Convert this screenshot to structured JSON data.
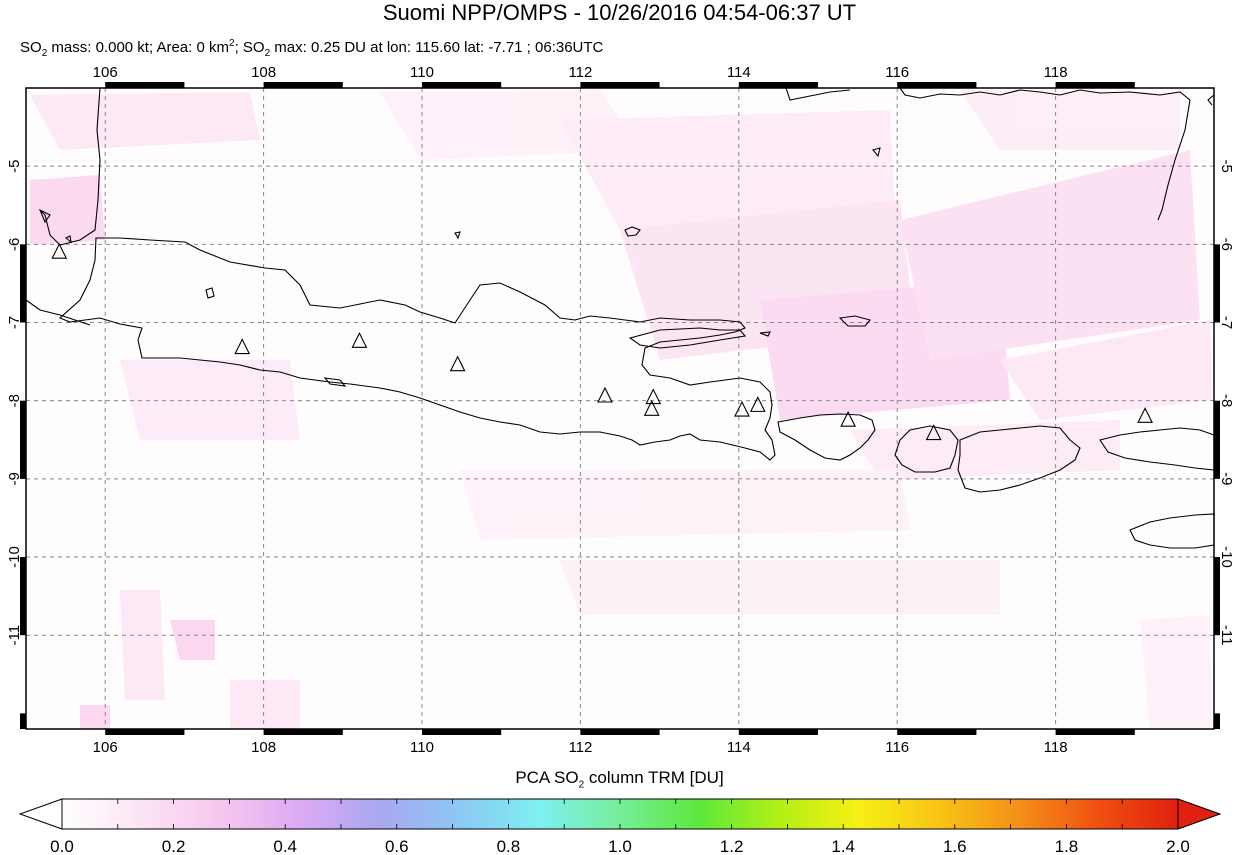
{
  "title": "Suomi NPP/OMPS - 10/26/2016 04:54-06:37 UT",
  "subtitle": {
    "so2_prefix": "SO",
    "so2_sub": "2",
    "mass_text": " mass: 0.000 kt; Area: 0 km",
    "area_sup": "2",
    "max_text": "; SO",
    "max_sub": "2",
    "max_rest": " max: 0.25 DU at lon: 115.60 lat: -7.71 ; 06:36UTC"
  },
  "map": {
    "lon_ticks": [
      "106",
      "108",
      "110",
      "112",
      "114",
      "116",
      "118"
    ],
    "lat_ticks": [
      "-5",
      "-6",
      "-7",
      "-8",
      "-9",
      "-10",
      "-11"
    ],
    "lon_range": [
      105,
      120
    ],
    "lat_range": [
      -12.2,
      -4.0
    ],
    "volcano_icon": "triangle-volcano-icon",
    "volcanoes": [
      {
        "lon": 105.42,
        "lat": -6.1
      },
      {
        "lon": 107.73,
        "lat": -7.32
      },
      {
        "lon": 109.21,
        "lat": -7.24
      },
      {
        "lon": 110.45,
        "lat": -7.54
      },
      {
        "lon": 112.31,
        "lat": -7.94
      },
      {
        "lon": 112.92,
        "lat": -7.96
      },
      {
        "lon": 112.9,
        "lat": -8.11
      },
      {
        "lon": 114.04,
        "lat": -8.12
      },
      {
        "lon": 114.24,
        "lat": -8.06
      },
      {
        "lon": 115.38,
        "lat": -8.25
      },
      {
        "lon": 116.46,
        "lat": -8.42
      },
      {
        "lon": 119.13,
        "lat": -8.2
      }
    ]
  },
  "colorbar": {
    "title_prefix": "PCA SO",
    "title_sub": "2",
    "title_rest": " column TRM [DU]",
    "labels": [
      "0.0",
      "0.2",
      "0.4",
      "0.6",
      "0.8",
      "1.0",
      "1.2",
      "1.4",
      "1.6",
      "1.8",
      "2.0"
    ],
    "colors": [
      "#ffffff",
      "#fbe4f4",
      "#f6c6ee",
      "#dcaaf4",
      "#a8a8f0",
      "#8cc8f4",
      "#7ef0f0",
      "#76ee9a",
      "#5ee83a",
      "#b2f016",
      "#f6f014",
      "#f8c416",
      "#f49018",
      "#f05010",
      "#e02010"
    ]
  }
}
